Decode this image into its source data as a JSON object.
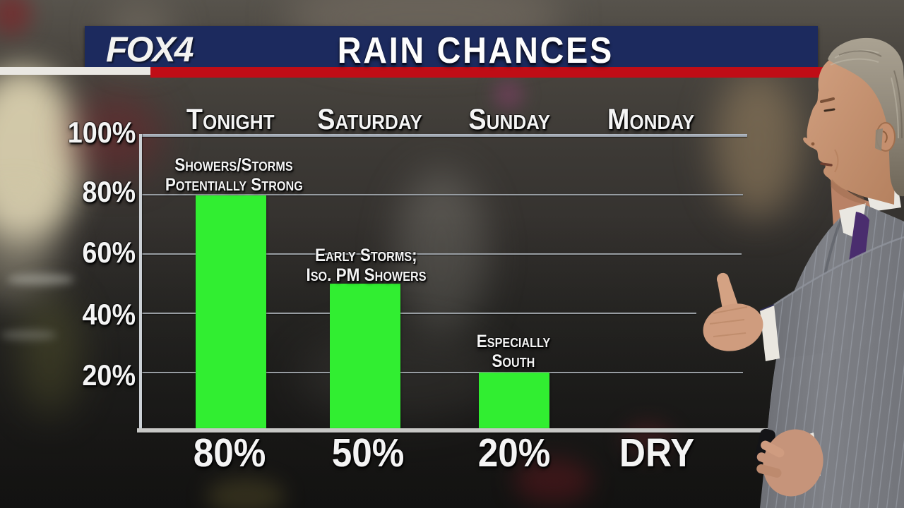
{
  "header": {
    "logo": "FOX4",
    "title": "RAIN CHANCES"
  },
  "chart_data": {
    "type": "bar",
    "title": "RAIN CHANCES",
    "categories": [
      "Tonight",
      "Saturday",
      "Sunday",
      "Monday"
    ],
    "values": [
      80,
      50,
      20,
      0
    ],
    "value_labels": [
      "80%",
      "50%",
      "20%",
      "DRY"
    ],
    "y_ticks": [
      "100%",
      "80%",
      "60%",
      "40%",
      "20%"
    ],
    "ylim": [
      0,
      100
    ],
    "grid": true,
    "legend": "none",
    "bar_color": "#31ee31",
    "annotations": [
      {
        "category": "Tonight",
        "line1": "Showers/Storms",
        "line2": "Potentially Strong"
      },
      {
        "category": "Saturday",
        "line1": "Early Storms;",
        "line2": "Iso. PM Showers"
      },
      {
        "category": "Sunday",
        "line1": "Especially",
        "line2": "South"
      }
    ]
  },
  "colors": {
    "header_navy": "#1c2a5e",
    "stripe_red": "#c00d16",
    "stripe_white": "#eae8e3",
    "bar_green": "#31ee31",
    "gridline_gray": "#979ca1",
    "baseline_gray": "#c8c8c6",
    "text_white": "#f4f4f4"
  },
  "scene": {
    "presenter": "weather-anchor-profile",
    "background": "rainy-night-city-blur"
  }
}
